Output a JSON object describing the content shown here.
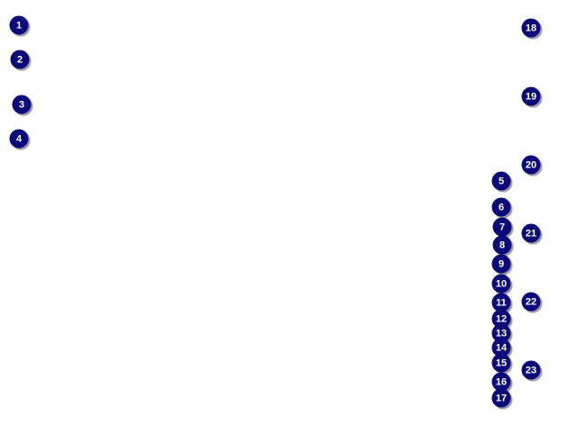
{
  "callouts": [
    "1",
    "2",
    "3",
    "4",
    "5",
    "6",
    "7",
    "8",
    "9",
    "10",
    "11",
    "12",
    "13",
    "14",
    "15",
    "16",
    "17",
    "18",
    "19",
    "20",
    "21",
    "22",
    "23"
  ],
  "colors": {
    "marker": "#0a0a7a",
    "text": "#ffffff"
  }
}
